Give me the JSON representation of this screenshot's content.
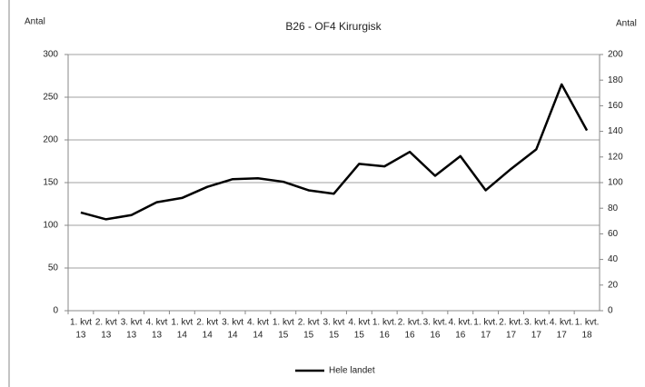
{
  "chart_data": {
    "type": "line",
    "title": "B26 - OF4 Kirurgisk",
    "y_label": "Antal",
    "y2_label": "Antal",
    "categories": [
      [
        "1. kvt",
        "13"
      ],
      [
        "2. kvt",
        "13"
      ],
      [
        "3. kvt",
        "13"
      ],
      [
        "4. kvt",
        "13"
      ],
      [
        "1. kvt",
        "14"
      ],
      [
        "2. kvt",
        "14"
      ],
      [
        "3. kvt",
        "14"
      ],
      [
        "4. kvt",
        "14"
      ],
      [
        "1. kvt",
        "15"
      ],
      [
        "2. kvt",
        "15"
      ],
      [
        "3. kvt",
        "15"
      ],
      [
        "4. kvt",
        "15"
      ],
      [
        "1. kvt.",
        "16"
      ],
      [
        "2. kvt.",
        "16"
      ],
      [
        "3. kvt.",
        "16"
      ],
      [
        "4. kvt.",
        "16"
      ],
      [
        "1. kvt.",
        "17"
      ],
      [
        "2. kvt.",
        "17"
      ],
      [
        "3. kvt.",
        "17"
      ],
      [
        "4. kvt.",
        "17"
      ],
      [
        "1. kvt.",
        "18"
      ]
    ],
    "series": [
      {
        "name": "Hele landet",
        "color": "#000000",
        "values": [
          115,
          107,
          112,
          127,
          132,
          145,
          154,
          155,
          151,
          141,
          137,
          172,
          169,
          186,
          158,
          181,
          141,
          166,
          189,
          265,
          211
        ]
      }
    ],
    "ylim": [
      0,
      300
    ],
    "yticks": [
      0,
      50,
      100,
      150,
      200,
      250,
      300
    ],
    "y2lim": [
      0,
      200
    ],
    "y2ticks": [
      0,
      20,
      40,
      60,
      80,
      100,
      120,
      140,
      160,
      180,
      200
    ],
    "grid": true,
    "legend": "bottom"
  }
}
